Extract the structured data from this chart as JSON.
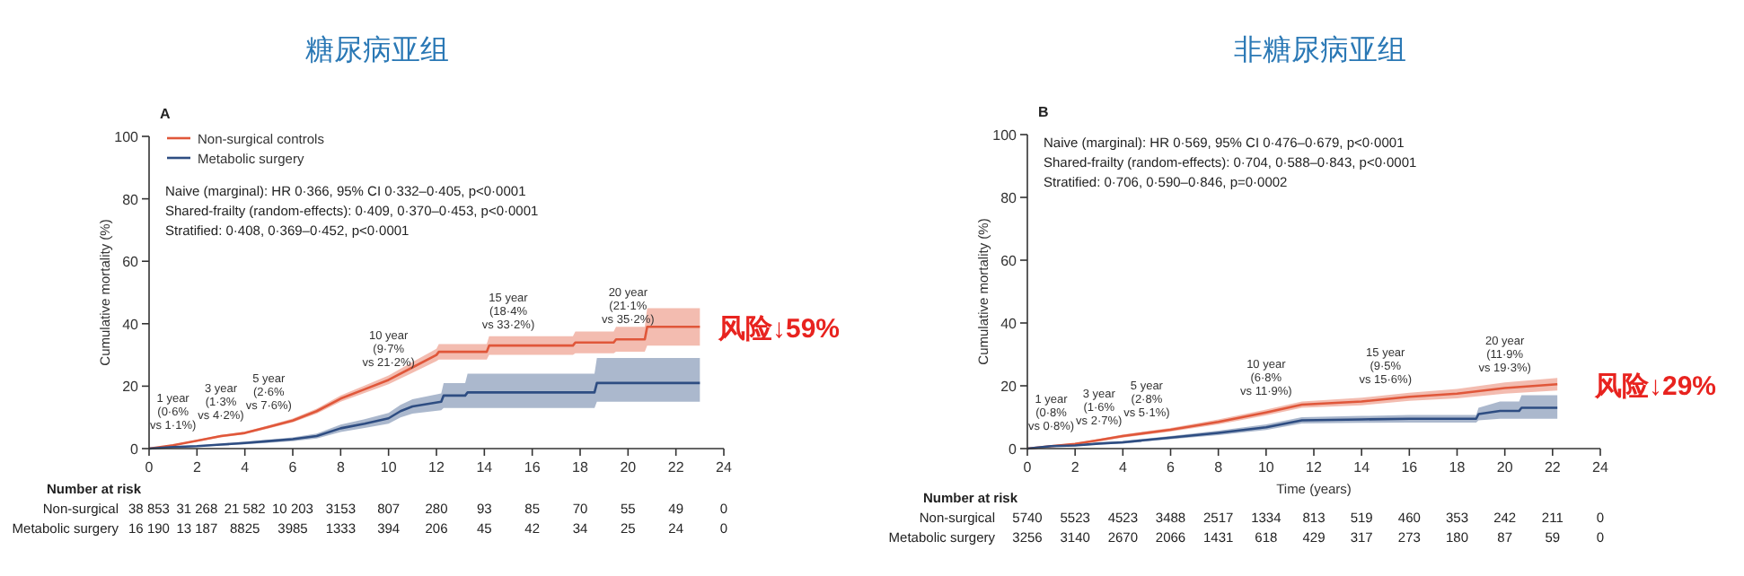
{
  "chart_data": [
    {
      "type": "line",
      "title": "糖尿病亚组",
      "ylabel": "Cumulative mortality (%)",
      "xlim": [
        0,
        24
      ],
      "xticks": [
        0,
        2,
        4,
        6,
        8,
        10,
        12,
        14,
        16,
        18,
        20,
        22,
        24
      ],
      "ylim": [
        0,
        100
      ],
      "yticks": [
        0,
        20,
        40,
        60,
        80,
        100
      ],
      "legend": "top left",
      "grid": false,
      "series": [
        {
          "name": "Non-surgical controls",
          "color": "#e0573a",
          "x": [
            0,
            1,
            2,
            3,
            4,
            5,
            6,
            7,
            8,
            9,
            10,
            11,
            12,
            12.1,
            14.1,
            14.2,
            17.7,
            17.8,
            19.4,
            19.5,
            20.7,
            20.8,
            23
          ],
          "values": [
            0,
            1.1,
            2.5,
            4,
            5,
            7,
            9,
            12,
            16,
            19,
            22,
            26,
            30,
            31,
            31,
            33,
            33,
            34,
            34,
            35,
            35,
            39,
            39
          ],
          "lower": [
            0,
            0.9,
            2.2,
            3.6,
            4.6,
            6.5,
            8.4,
            11.2,
            15,
            17.8,
            20.6,
            24.3,
            28,
            28.5,
            28.5,
            30,
            30,
            30.5,
            30.5,
            31,
            31,
            33,
            33
          ],
          "upper": [
            0,
            1.3,
            2.8,
            4.4,
            5.4,
            7.5,
            9.6,
            12.8,
            17,
            20.2,
            23.4,
            27.7,
            32,
            33.5,
            33.5,
            36,
            36,
            37.5,
            37.5,
            39,
            39,
            45,
            45
          ]
        },
        {
          "name": "Metabolic surgery",
          "color": "#2e4d82",
          "x": [
            0,
            1,
            2,
            3,
            4,
            5,
            6,
            7,
            8,
            9,
            10,
            10.5,
            11,
            12.2,
            12.3,
            13.2,
            13.3,
            18.6,
            18.7,
            23
          ],
          "values": [
            0,
            0.5,
            0.8,
            1.3,
            1.8,
            2.4,
            3,
            4,
            6.5,
            8,
            9.7,
            12,
            13.5,
            15,
            17,
            17,
            18,
            18,
            21,
            21
          ],
          "lower": [
            0,
            0.3,
            0.6,
            1,
            1.4,
            1.9,
            2.4,
            3.2,
            5.3,
            6.6,
            8,
            10,
            11.2,
            12.3,
            13,
            13,
            13,
            13,
            15,
            15
          ],
          "upper": [
            0,
            0.7,
            1,
            1.6,
            2.2,
            2.9,
            3.6,
            4.8,
            7.7,
            9.4,
            11.4,
            14,
            15.8,
            17.7,
            21,
            21,
            24,
            24,
            29,
            29
          ]
        }
      ],
      "annotations": [
        "A",
        "Naive (marginal): HR 0·366, 95% CI 0·332–0·405, p<0·0001",
        "Shared-frailty (random-effects): 0·409, 0·370–0·453, p<0·0001",
        "Stratified: 0·408, 0·369–0·452, p<0·0001",
        "风险↓59%",
        "Number at risk",
        "Non-surgical",
        "Metabolic surgery",
        "38 853",
        "31 268",
        "21 582",
        "10 203",
        "3153",
        "807",
        "280",
        "93",
        "85",
        "70",
        "55",
        "49",
        "0",
        "16 190",
        "13 187",
        "8825",
        "3985",
        "1333",
        "394",
        "206",
        "45",
        "42",
        "34",
        "25",
        "24",
        "0",
        {
          "text": "1 year\n(0·6%\nvs 1·1%)",
          "x": 1,
          "y": 1.1
        },
        {
          "text": "3 year\n(1·3%\nvs 4·2%)",
          "x": 3,
          "y": 4.2
        },
        {
          "text": "5 year\n(2·6%\nvs 7·6%)",
          "x": 5,
          "y": 7.6
        },
        {
          "text": "10 year\n(9·7%\nvs 21·2%)",
          "x": 10,
          "y": 21.2
        },
        {
          "text": "15 year\n(18·4%\nvs 33·2%)",
          "x": 15,
          "y": 33.2
        },
        {
          "text": "20 year\n(21·1%\nvs 35·2%)",
          "x": 20,
          "y": 35.2
        }
      ]
    },
    {
      "type": "line",
      "title": "非糖尿病亚组",
      "xlabel": "Time (years)",
      "ylabel": "Cumulative mortality (%)",
      "xlim": [
        0,
        24
      ],
      "xticks": [
        0,
        2,
        4,
        6,
        8,
        10,
        12,
        14,
        16,
        18,
        20,
        22,
        24
      ],
      "ylim": [
        0,
        100
      ],
      "yticks": [
        0,
        20,
        40,
        60,
        80,
        100
      ],
      "grid": false,
      "series": [
        {
          "color": "#e0573a",
          "x": [
            0,
            1,
            2,
            3,
            4,
            6,
            8,
            10,
            11.5,
            14,
            16,
            18,
            20,
            22.2
          ],
          "values": [
            0,
            0.8,
            1.5,
            2.7,
            4,
            6,
            8.5,
            11.5,
            14,
            15,
            16.5,
            17.5,
            19.3,
            20.5
          ],
          "lower": [
            0,
            0.6,
            1.2,
            2.3,
            3.5,
            5.4,
            7.7,
            10.6,
            13,
            13.8,
            15.2,
            16,
            17.5,
            18.5
          ],
          "upper": [
            0,
            1,
            1.8,
            3.1,
            4.5,
            6.6,
            9.3,
            12.4,
            15,
            16.2,
            17.8,
            19,
            21.1,
            22.5
          ]
        },
        {
          "color": "#2e4d82",
          "x": [
            0,
            1,
            2,
            3,
            4,
            6,
            8,
            10,
            11.5,
            14,
            16,
            18.8,
            18.9,
            19.8,
            20.6,
            20.7,
            22.2
          ],
          "values": [
            0,
            0.8,
            1,
            1.6,
            2,
            3.5,
            5,
            6.8,
            9,
            9.3,
            9.5,
            9.5,
            11,
            12,
            12,
            13,
            13
          ],
          "lower": [
            0,
            0.6,
            0.8,
            1.3,
            1.6,
            3,
            4.3,
            5.9,
            8,
            8.2,
            8.3,
            8.3,
            9,
            9.5,
            9.5,
            9.5,
            9.5
          ],
          "upper": [
            0,
            1,
            1.2,
            1.9,
            2.4,
            4,
            5.7,
            7.7,
            10,
            10.4,
            10.7,
            10.7,
            13,
            15,
            15,
            17,
            17
          ]
        }
      ],
      "annotations": [
        "B",
        "Naive (marginal): HR 0·569, 95% CI 0·476–0·679, p<0·0001",
        "Shared-frailty (random-effects): 0·704, 0·588–0·843, p<0·0001",
        "Stratified: 0·706, 0·590–0·846, p=0·0002",
        "风险↓29%",
        "Number at risk",
        "Non-surgical",
        "Metabolic surgery",
        "5740",
        "5523",
        "4523",
        "3488",
        "2517",
        "1334",
        "813",
        "519",
        "460",
        "353",
        "242",
        "211",
        "0",
        "3256",
        "3140",
        "2670",
        "2066",
        "1431",
        "618",
        "429",
        "317",
        "273",
        "180",
        "87",
        "59",
        "0",
        {
          "text": "1 year\n(0·8%\nvs 0·8%)",
          "x": 1,
          "y": 0.8
        },
        {
          "text": "3 year\n(1·6%\nvs 2·7%)",
          "x": 3,
          "y": 2.7
        },
        {
          "text": "5 year\n(2·8%\nvs 5·1%)",
          "x": 5,
          "y": 5.1
        },
        {
          "text": "10 year\n(6·8%\nvs 11·9%)",
          "x": 10,
          "y": 11.9
        },
        {
          "text": "15 year\n(9·5%\nvs 15·6%)",
          "x": 15,
          "y": 15.6
        },
        {
          "text": "20 year\n(11·9%\nvs 19·3%)",
          "x": 20,
          "y": 19.3
        }
      ]
    }
  ]
}
